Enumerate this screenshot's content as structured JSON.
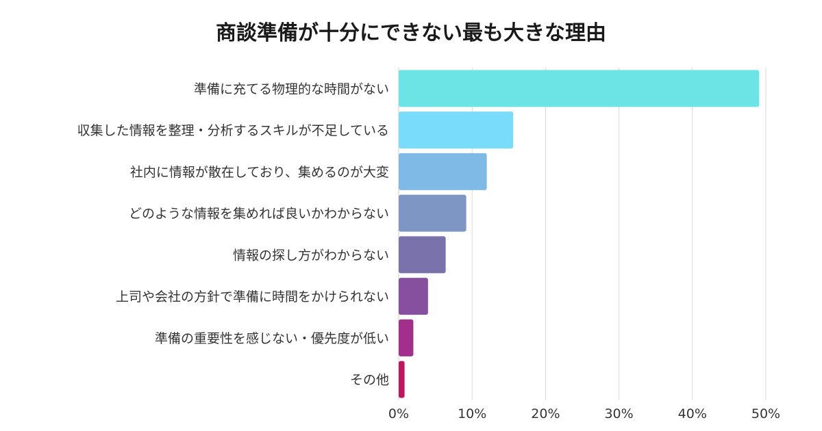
{
  "chart_data": {
    "type": "bar",
    "orientation": "horizontal",
    "title": "商談準備が十分にできない最も大きな理由",
    "categories": [
      "準備に充てる物理的な時間がない",
      "収集した情報を整理・分析するスキルが不足している",
      "社内に情報が散在しており、集めるのが大変",
      "どのような情報を集めれば良いかわからない",
      "情報の探し方がわからない",
      "上司や会社の方針で準備に時間をかけられない",
      "準備の重要性を感じない・優先度が低い",
      "その他"
    ],
    "values": [
      49.1,
      15.6,
      12.0,
      9.2,
      6.4,
      4.0,
      2.0,
      0.8
    ],
    "colors": [
      "#6ce4e6",
      "#7adcfb",
      "#7fbae6",
      "#7e96c4",
      "#7a72aa",
      "#87509f",
      "#a32f8c",
      "#c0165f"
    ],
    "xlim": [
      0,
      50
    ],
    "xticks": [
      "0%",
      "10%",
      "20%",
      "30%",
      "40%",
      "50%"
    ],
    "grid": true,
    "legend": "none"
  }
}
